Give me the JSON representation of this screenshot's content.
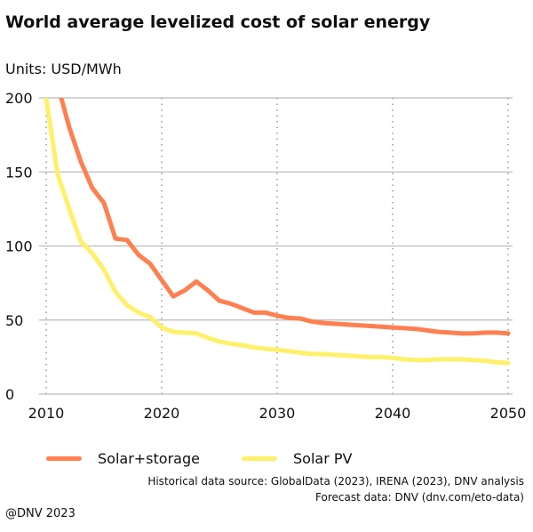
{
  "chart_data": {
    "type": "line",
    "title": "World average levelized cost of solar energy",
    "units_label": "Units: USD/MWh",
    "xlim": [
      2010,
      2050
    ],
    "ylim": [
      0,
      200
    ],
    "x_ticks": [
      "2010",
      "2020",
      "2030",
      "2040",
      "2050"
    ],
    "y_ticks": [
      "0",
      "50",
      "100",
      "150",
      "200"
    ],
    "grid": {
      "horizontal": "solid",
      "vertical": "dotted"
    },
    "legend_position": "bottom",
    "series": [
      {
        "name": "Solar+storage",
        "color": "#ff7f50",
        "x": [
          2011.3,
          2012,
          2013,
          2014,
          2015,
          2016,
          2017,
          2018,
          2019,
          2020,
          2021,
          2022,
          2023,
          2024,
          2025,
          2026,
          2027,
          2028,
          2029,
          2030,
          2031,
          2032,
          2033,
          2034,
          2035,
          2036,
          2037,
          2038,
          2039,
          2040,
          2041,
          2042,
          2043,
          2044,
          2045,
          2046,
          2047,
          2048,
          2049,
          2050
        ],
        "y": [
          200,
          180,
          157,
          139,
          129,
          105,
          104,
          94,
          88,
          77,
          66,
          70,
          76,
          70,
          63,
          61,
          58,
          55,
          55,
          53,
          51.5,
          51,
          49,
          48,
          47.5,
          47,
          46.5,
          46,
          45.5,
          45,
          44.5,
          44,
          43,
          42,
          41.5,
          41,
          41,
          41.5,
          41.5,
          41
        ]
      },
      {
        "name": "Solar PV",
        "color": "#fff06a",
        "x": [
          2010,
          2011,
          2012,
          2013,
          2014,
          2015,
          2016,
          2017,
          2018,
          2019,
          2020,
          2021,
          2022,
          2023,
          2024,
          2025,
          2026,
          2027,
          2028,
          2029,
          2030,
          2031,
          2032,
          2033,
          2034,
          2035,
          2036,
          2037,
          2038,
          2039,
          2040,
          2041,
          2042,
          2043,
          2044,
          2045,
          2046,
          2047,
          2048,
          2049,
          2050
        ],
        "y": [
          200,
          148,
          125,
          103,
          95,
          84,
          69,
          60,
          55,
          52,
          45,
          42,
          41.5,
          41,
          38,
          35.5,
          34,
          33,
          31.5,
          30.5,
          30,
          29,
          28,
          27,
          27,
          26.5,
          26,
          25.5,
          25,
          25,
          24.5,
          23.5,
          23,
          23,
          23.5,
          23.5,
          23.5,
          23,
          22.5,
          21.5,
          21
        ]
      }
    ]
  },
  "footer": {
    "source_historical": "Historical data source: GlobalData (2023), IRENA (2023), DNV analysis",
    "source_forecast": "Forecast data: DNV (dnv.com/eto-data)",
    "copyright": "@DNV 2023"
  }
}
